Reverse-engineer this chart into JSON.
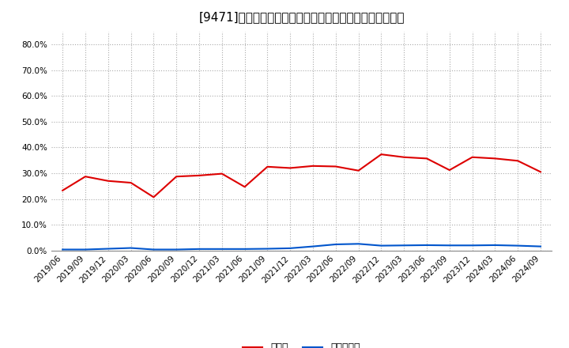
{
  "title": "[9471]　現頲金、有利子負債の総資産に対する比率の推移",
  "x_labels": [
    "2019/06",
    "2019/09",
    "2019/12",
    "2020/03",
    "2020/06",
    "2020/09",
    "2020/12",
    "2021/03",
    "2021/06",
    "2021/09",
    "2021/12",
    "2022/03",
    "2022/06",
    "2022/09",
    "2022/12",
    "2023/03",
    "2023/06",
    "2023/09",
    "2023/12",
    "2024/03",
    "2024/06",
    "2024/09"
  ],
  "cash_ratio": [
    0.233,
    0.287,
    0.27,
    0.263,
    0.207,
    0.287,
    0.291,
    0.298,
    0.247,
    0.325,
    0.32,
    0.328,
    0.326,
    0.31,
    0.373,
    0.362,
    0.357,
    0.312,
    0.362,
    0.357,
    0.348,
    0.305
  ],
  "debt_ratio": [
    0.004,
    0.004,
    0.007,
    0.01,
    0.004,
    0.004,
    0.006,
    0.006,
    0.006,
    0.007,
    0.009,
    0.016,
    0.024,
    0.026,
    0.019,
    0.02,
    0.021,
    0.02,
    0.02,
    0.021,
    0.019,
    0.016
  ],
  "cash_color": "#dd0000",
  "debt_color": "#0055cc",
  "background_color": "#ffffff",
  "plot_bg_color": "#ffffff",
  "grid_color": "#aaaaaa",
  "ylim_min": 0.0,
  "ylim_max": 0.85,
  "yticks": [
    0.0,
    0.1,
    0.2,
    0.3,
    0.4,
    0.5,
    0.6,
    0.7,
    0.8
  ],
  "legend_cash": "現頲金",
  "legend_debt": "有利子負債",
  "title_fontsize": 11,
  "axis_fontsize": 7.5,
  "legend_fontsize": 9
}
